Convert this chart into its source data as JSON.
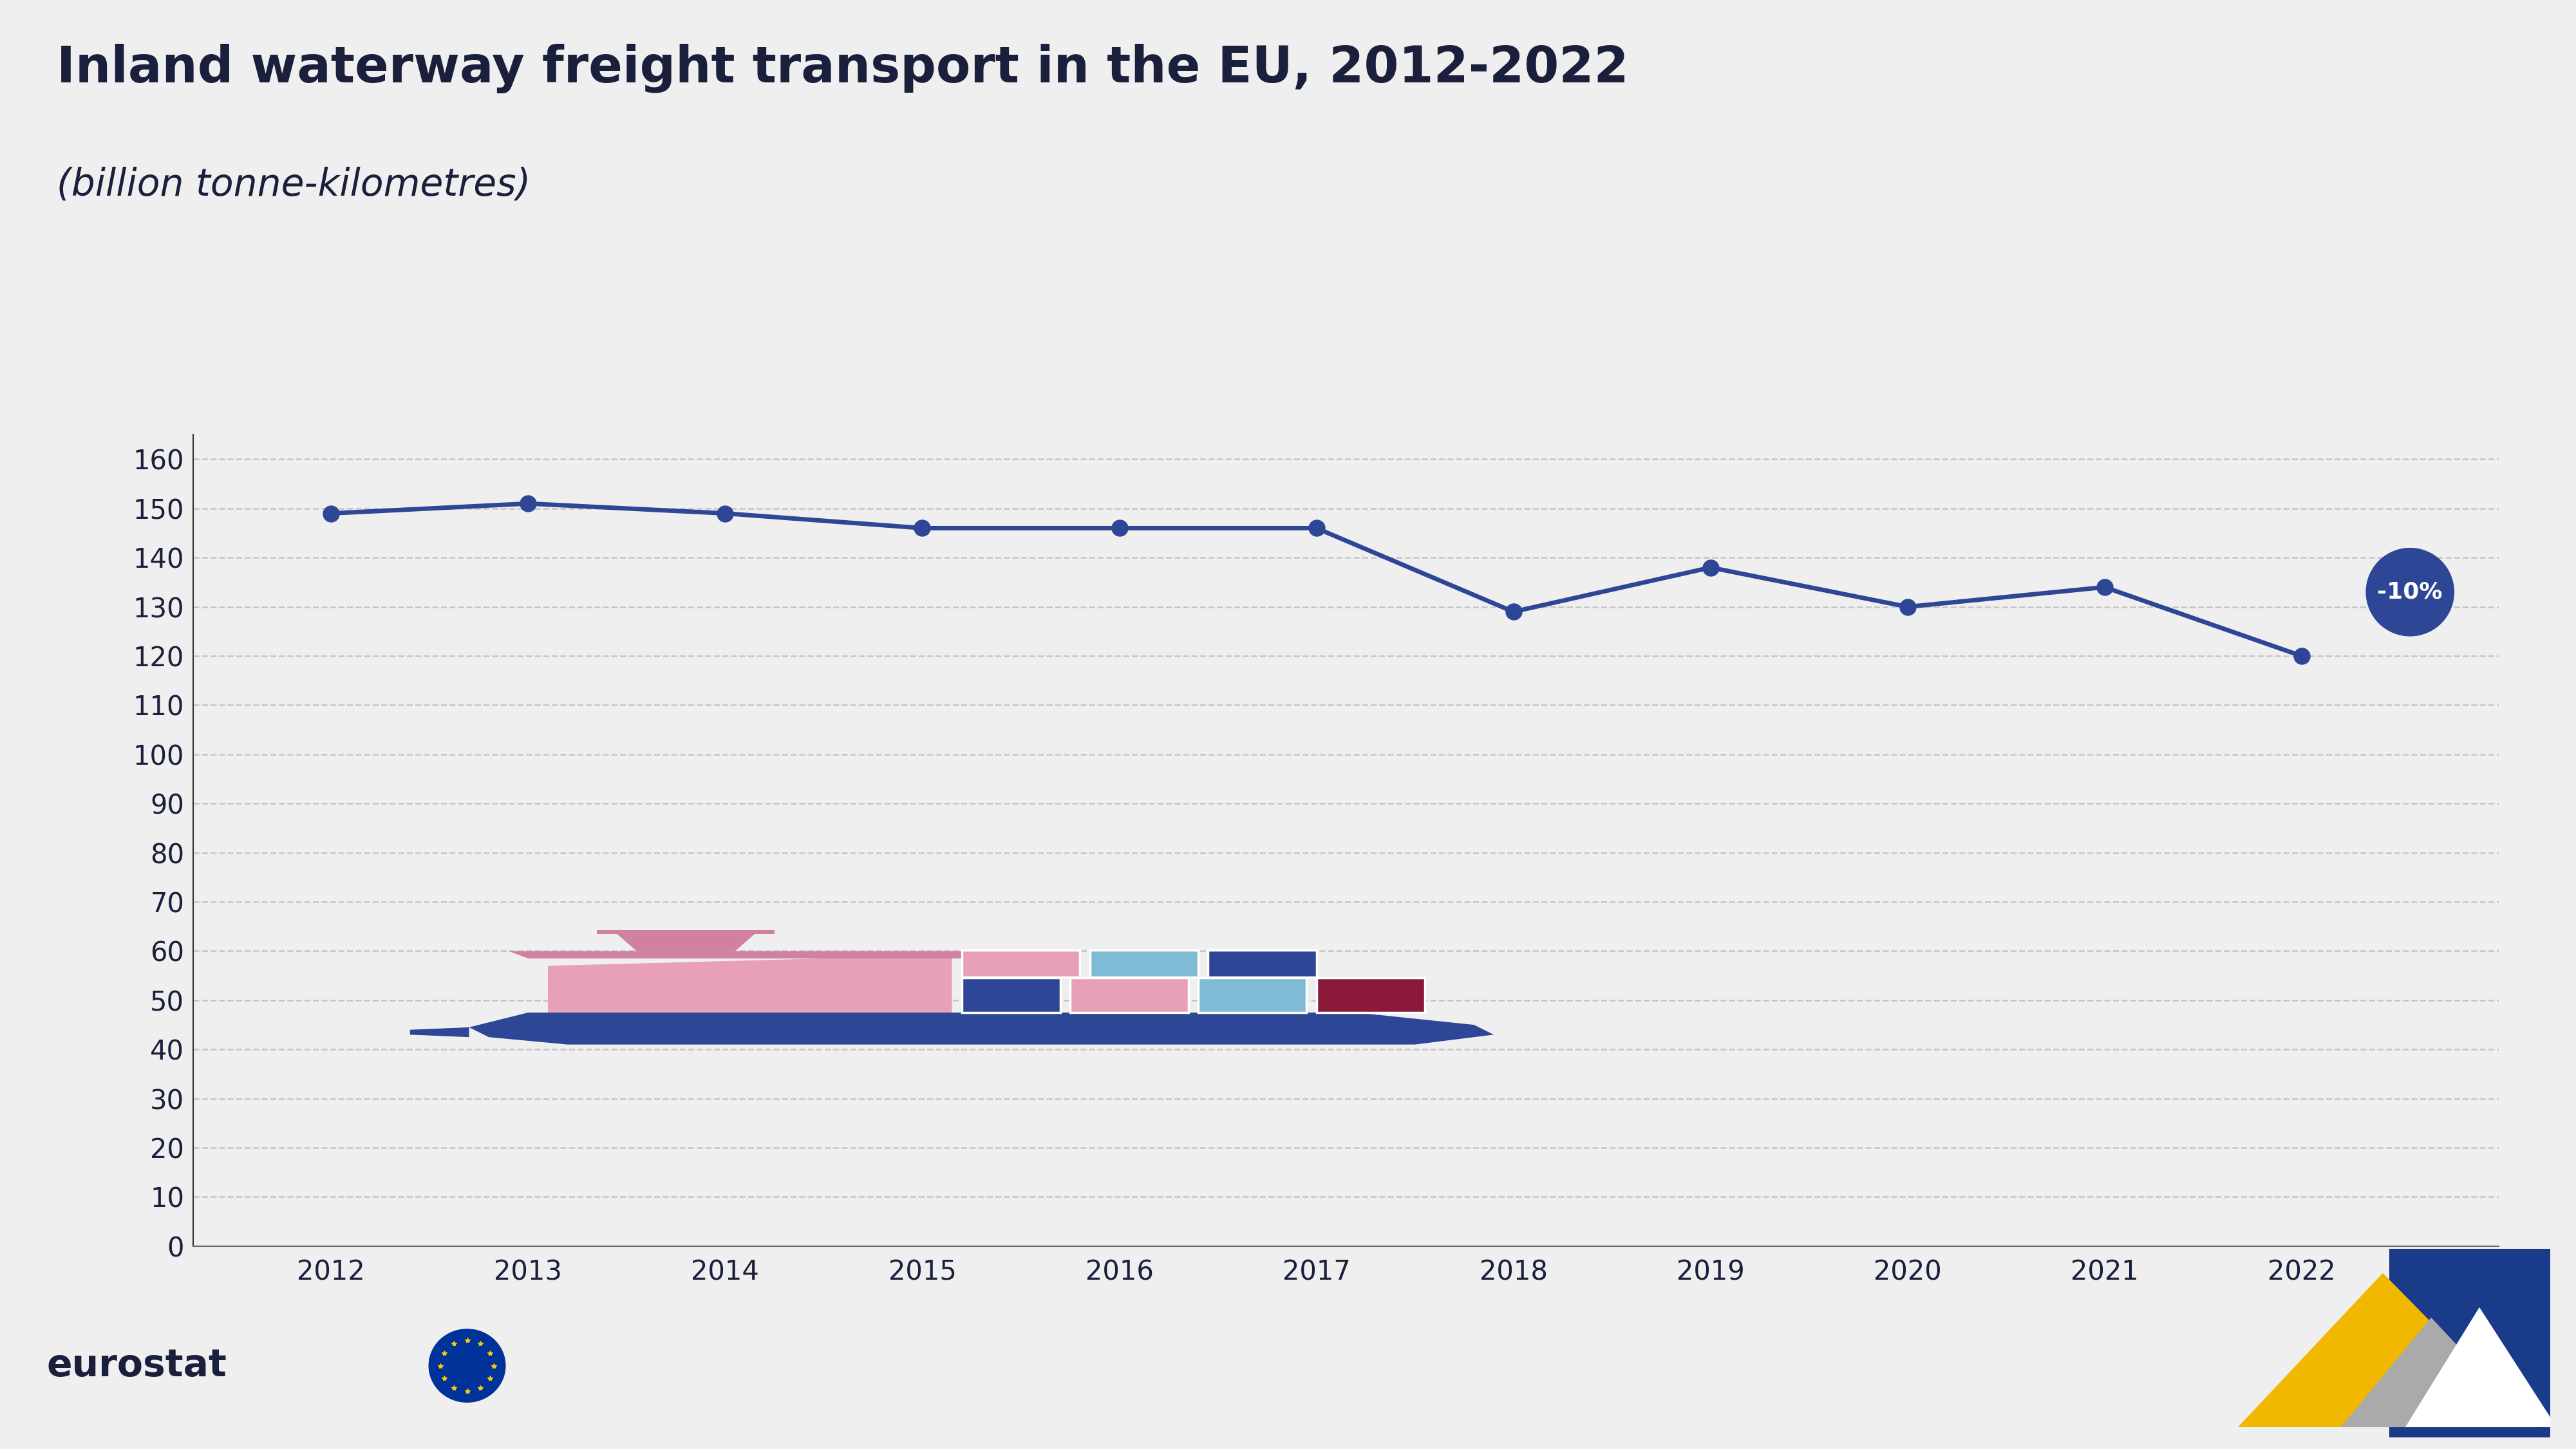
{
  "title": "Inland waterway freight transport in the EU, 2012-2022",
  "subtitle": "(billion tonne-kilometres)",
  "years": [
    2012,
    2013,
    2014,
    2015,
    2016,
    2017,
    2018,
    2019,
    2020,
    2021,
    2022
  ],
  "values": [
    149,
    151,
    149,
    146,
    146,
    146,
    129,
    138,
    130,
    134,
    120
  ],
  "line_color": "#2d4796",
  "marker_color": "#2d4796",
  "background_color": "#f0eff0",
  "grid_color": "#bbbbbb",
  "ylim": [
    0,
    165
  ],
  "yticks": [
    0,
    10,
    20,
    30,
    40,
    50,
    60,
    70,
    80,
    90,
    100,
    110,
    120,
    130,
    140,
    150,
    160
  ],
  "annotation_text": "-10%",
  "annotation_circle_color": "#2d4796",
  "title_color": "#1a1f3c",
  "subtitle_color": "#1a1f3c",
  "tick_color": "#1a1f3c",
  "ship_hull_color": "#2d4796",
  "ship_cabin_color": "#e8a0b8"
}
